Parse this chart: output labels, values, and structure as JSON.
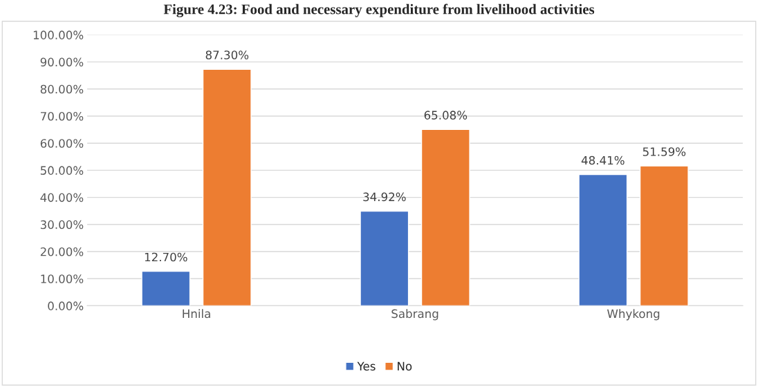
{
  "chart_data": {
    "type": "bar",
    "title": "Figure 4.23: Food and necessary expenditure from livelihood activities",
    "categories": [
      "Hnila",
      "Sabrang",
      "Whykong"
    ],
    "series": [
      {
        "name": "Yes",
        "color": "#4472c4",
        "values": [
          12.7,
          34.92,
          48.41
        ],
        "value_labels": [
          "12.70%",
          "34.92%",
          "48.41%"
        ]
      },
      {
        "name": "No",
        "color": "#ed7d31",
        "values": [
          87.3,
          65.08,
          51.59
        ],
        "value_labels": [
          "87.30%",
          "65.08%",
          "51.59%"
        ]
      }
    ],
    "ylim": [
      0,
      100
    ],
    "yticks": [
      {
        "value": 0,
        "label": "0.00%"
      },
      {
        "value": 10,
        "label": "10.00%"
      },
      {
        "value": 20,
        "label": "20.00%"
      },
      {
        "value": 30,
        "label": "30.00%"
      },
      {
        "value": 40,
        "label": "40.00%"
      },
      {
        "value": 50,
        "label": "50.00%"
      },
      {
        "value": 60,
        "label": "60.00%"
      },
      {
        "value": 70,
        "label": "70.00%"
      },
      {
        "value": 80,
        "label": "80.00%"
      },
      {
        "value": 90,
        "label": "90.00%"
      },
      {
        "value": 100,
        "label": "100.00%"
      }
    ],
    "grid": "y",
    "legend": "bottom"
  }
}
